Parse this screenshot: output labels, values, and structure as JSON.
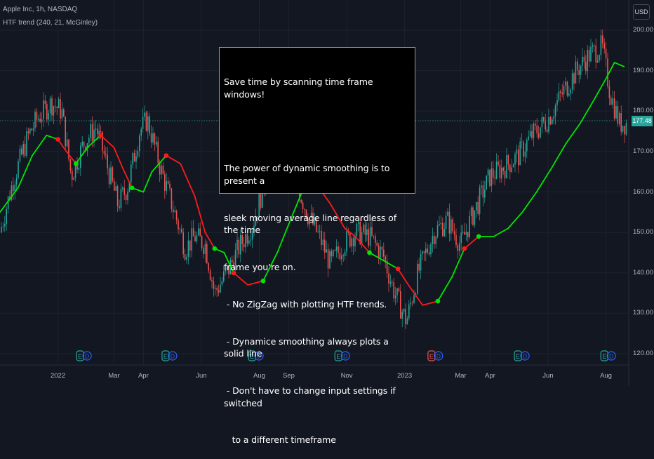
{
  "header": {
    "symbol_line": "Apple Inc, 1h, NASDAQ",
    "indicator_line": "HTF trend (240, 21, McGinley)"
  },
  "currency_button": "USD",
  "last_price": "177.48",
  "colors": {
    "background": "#131722",
    "up_trend": "#00e600",
    "down_trend": "#ff1a1a",
    "candle_up": "#26a69a",
    "candle_down": "#ef5350",
    "earnings_badge": "#26a69a",
    "earnings_badge_alt": "#ef5350"
  },
  "note": {
    "lines": [
      "Save time by scanning time frame windows!",
      "",
      "The power of dynamic smoothing is to present a",
      "sleek moving average line regardless of the time",
      "frame you’re on.",
      " - No ZigZag with plotting HTF trends.",
      " - Dynamice smoothing always plots a solid line",
      " - Don't have to change input settings if switched",
      "   to a different timeframe"
    ]
  },
  "earnings_badges": [
    {
      "labels": [
        "E",
        "D"
      ],
      "x_label": "Jan 2022",
      "icon": "earnings-dividends-icon"
    },
    {
      "labels": [
        "E",
        "D"
      ],
      "x_label": "Apr",
      "icon": "earnings-dividends-icon"
    },
    {
      "labels": [
        "E",
        "D"
      ],
      "x_label": "Jul",
      "icon": "earnings-dividends-icon"
    },
    {
      "labels": [
        "E",
        "D"
      ],
      "x_label": "Oct",
      "icon": "earnings-dividends-icon"
    },
    {
      "labels": [
        "E",
        "D"
      ],
      "x_label": "Jan 2023",
      "icon": "earnings-dividends-icon",
      "highlight": true
    },
    {
      "labels": [
        "E",
        "D"
      ],
      "x_label": "May",
      "icon": "earnings-dividends-icon"
    },
    {
      "labels": [
        "E",
        "D"
      ],
      "x_label": "Aug",
      "icon": "earnings-dividends-icon"
    }
  ],
  "chart_data": {
    "type": "line",
    "title": "Apple Inc, 1h, NASDAQ",
    "xlabel": "",
    "ylabel": "",
    "ylim": [
      117,
      204
    ],
    "y_ticks": [
      120,
      130,
      140,
      150,
      160,
      170,
      180,
      190,
      200
    ],
    "y_tick_labels": [
      "120.00",
      "130.00",
      "140.00",
      "150.00",
      "160.00",
      "170.00",
      "180.00",
      "190.00",
      "200.00"
    ],
    "x_tick_labels": [
      "2022",
      "Mar",
      "Apr",
      "Jun",
      "Aug",
      "Sep",
      "Nov",
      "2023",
      "Mar",
      "Apr",
      "Jun",
      "Aug"
    ],
    "x_tick_months": [
      "2022-01",
      "2022-03",
      "2022-04",
      "2022-06",
      "2022-08",
      "2022-09",
      "2022-11",
      "2023-01",
      "2023-03",
      "2023-04",
      "2023-06",
      "2023-08"
    ],
    "last_price": 177.48,
    "grid": true,
    "series": [
      {
        "name": "HTF trend (240, 21, McGinley)",
        "x": [
          "2021-11-01",
          "2021-11-20",
          "2021-12-05",
          "2021-12-20",
          "2022-01-01",
          "2022-01-10",
          "2022-01-20",
          "2022-02-01",
          "2022-02-15",
          "2022-03-01",
          "2022-03-10",
          "2022-03-20",
          "2022-04-01",
          "2022-04-10",
          "2022-04-25",
          "2022-05-10",
          "2022-05-25",
          "2022-06-05",
          "2022-06-15",
          "2022-06-25",
          "2022-07-05",
          "2022-07-20",
          "2022-08-05",
          "2022-08-20",
          "2022-09-01",
          "2022-09-15",
          "2022-09-30",
          "2022-10-15",
          "2022-10-30",
          "2022-11-10",
          "2022-11-25",
          "2022-12-10",
          "2022-12-25",
          "2023-01-05",
          "2023-01-20",
          "2023-02-05",
          "2023-02-20",
          "2023-03-05",
          "2023-03-20",
          "2023-04-05",
          "2023-04-20",
          "2023-05-05",
          "2023-05-20",
          "2023-06-05",
          "2023-06-20",
          "2023-07-05",
          "2023-07-20",
          "2023-08-01",
          "2023-08-10",
          "2023-08-20"
        ],
        "values": [
          155,
          161,
          169,
          174,
          173,
          170,
          167,
          171,
          174,
          171,
          166,
          161,
          160,
          165,
          169,
          167,
          159,
          150,
          146,
          145,
          140,
          137,
          138,
          145,
          152,
          160,
          162,
          157,
          151,
          149,
          145,
          143,
          141,
          137,
          132,
          133,
          139,
          146,
          149,
          149,
          151,
          155,
          160,
          166,
          172,
          177,
          183,
          188,
          192,
          191
        ],
        "trend": [
          "up",
          "up",
          "up",
          "up",
          "down",
          "down",
          "up",
          "up",
          "down",
          "down",
          "down",
          "up",
          "up",
          "up",
          "down",
          "down",
          "down",
          "down",
          "up",
          "up",
          "down",
          "down",
          "up",
          "up",
          "up",
          "up",
          "down",
          "down",
          "down",
          "down",
          "up",
          "up",
          "down",
          "down",
          "down",
          "up",
          "up",
          "down",
          "up",
          "up",
          "up",
          "up",
          "up",
          "up",
          "up",
          "up",
          "up",
          "up",
          "up",
          "down"
        ]
      },
      {
        "name": "price",
        "x": [
          "2021-11-01",
          "2021-11-15",
          "2021-12-01",
          "2021-12-10",
          "2021-12-25",
          "2022-01-05",
          "2022-01-15",
          "2022-01-28",
          "2022-02-10",
          "2022-02-20",
          "2022-03-05",
          "2022-03-15",
          "2022-03-28",
          "2022-04-05",
          "2022-04-20",
          "2022-05-05",
          "2022-05-15",
          "2022-05-25",
          "2022-06-05",
          "2022-06-15",
          "2022-06-28",
          "2022-07-10",
          "2022-07-25",
          "2022-08-10",
          "2022-08-20",
          "2022-09-05",
          "2022-09-20",
          "2022-10-05",
          "2022-10-15",
          "2022-10-28",
          "2022-11-10",
          "2022-11-25",
          "2022-12-10",
          "2022-12-20",
          "2023-01-03",
          "2023-01-15",
          "2023-02-01",
          "2023-02-15",
          "2023-03-01",
          "2023-03-15",
          "2023-04-01",
          "2023-04-15",
          "2023-05-01",
          "2023-05-15",
          "2023-06-01",
          "2023-06-15",
          "2023-07-01",
          "2023-07-15",
          "2023-07-28",
          "2023-08-05",
          "2023-08-15"
        ],
        "values": [
          150,
          163,
          174,
          178,
          182,
          180,
          164,
          172,
          176,
          168,
          157,
          161,
          175,
          178,
          165,
          154,
          146,
          149,
          147,
          135,
          140,
          146,
          152,
          165,
          172,
          165,
          155,
          148,
          142,
          147,
          150,
          149,
          144,
          136,
          128,
          140,
          150,
          153,
          147,
          155,
          164,
          166,
          169,
          174,
          178,
          184,
          190,
          194,
          196,
          185,
          177
        ]
      }
    ]
  }
}
